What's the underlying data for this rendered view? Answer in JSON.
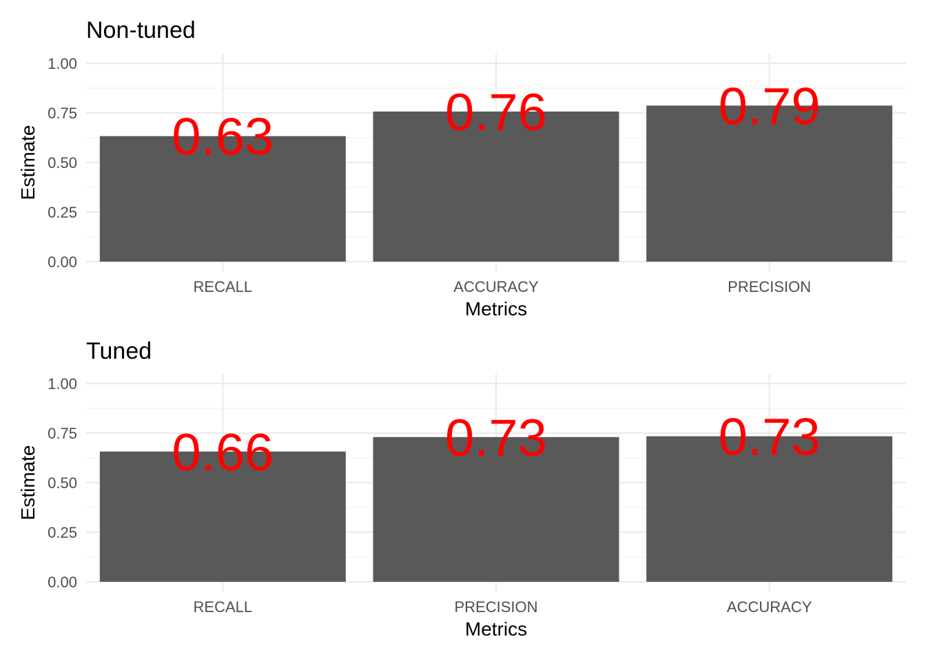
{
  "colors": {
    "bar": "#595959",
    "label": "#ff0000",
    "grid_major": "#ebebeb",
    "grid_minor": "#f2f2f2",
    "tick_text": "#4d4d4d"
  },
  "chart_data": [
    {
      "type": "bar",
      "title": "Non-tuned",
      "xlabel": "Metrics",
      "ylabel": "Estimate",
      "categories": [
        "RECALL",
        "ACCURACY",
        "PRECISION"
      ],
      "values": [
        0.633,
        0.757,
        0.787
      ],
      "data_labels": [
        "0.63",
        "0.76",
        "0.79"
      ],
      "ylim": [
        0,
        1
      ],
      "yticks": [
        0,
        0.25,
        0.5,
        0.75,
        1
      ],
      "ytick_labels": [
        "0.00",
        "0.25",
        "0.50",
        "0.75",
        "1.00"
      ],
      "grid": true,
      "legend": "none"
    },
    {
      "type": "bar",
      "title": "Tuned",
      "xlabel": "Metrics",
      "ylabel": "Estimate",
      "categories": [
        "RECALL",
        "PRECISION",
        "ACCURACY"
      ],
      "values": [
        0.657,
        0.73,
        0.734
      ],
      "data_labels": [
        "0.66",
        "0.73",
        "0.73"
      ],
      "ylim": [
        0,
        1
      ],
      "yticks": [
        0,
        0.25,
        0.5,
        0.75,
        1
      ],
      "ytick_labels": [
        "0.00",
        "0.25",
        "0.50",
        "0.75",
        "1.00"
      ],
      "grid": true,
      "legend": "none"
    }
  ]
}
